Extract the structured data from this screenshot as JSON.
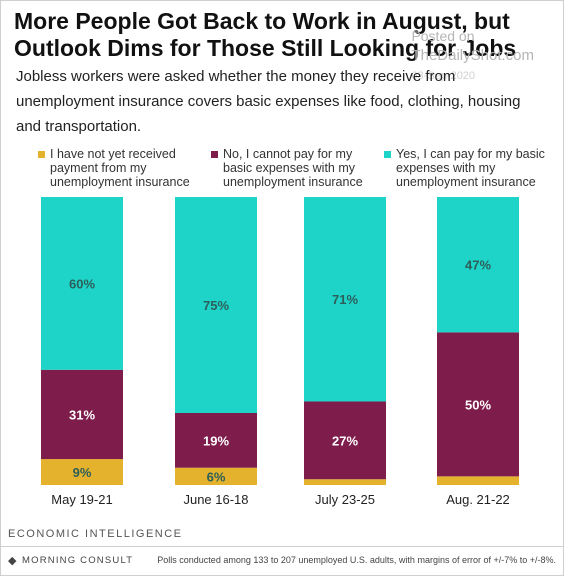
{
  "header": {
    "title": "More People Got Back to Work in August, but Outlook Dims for Those Still Looking for Jobs",
    "subtitle": "Jobless workers were asked whether the money they receive from unemployment insurance covers basic expenses like food, clothing, housing and transportation."
  },
  "watermark": {
    "line1": "Posted on",
    "line2": "TheDailyShot.com",
    "line3": "03-Sep-2020"
  },
  "colors": {
    "not_received": "#e4b22c",
    "cannot_pay": "#7e1c4b",
    "can_pay": "#1ed3c8",
    "label_dark": "#2d5f5a",
    "label_light": "#ffffff"
  },
  "chart_data": {
    "type": "bar",
    "stacked": true,
    "categories": [
      "May 19-21",
      "June 16-18",
      "July 23-25",
      "Aug. 21-22"
    ],
    "series": [
      {
        "name": "I have not yet received payment from my unemployment insurance",
        "values": [
          9,
          6,
          2,
          3
        ],
        "labels": [
          "9%",
          "6%",
          "",
          ""
        ]
      },
      {
        "name": "No, I cannot pay for my basic expenses with my unemployment insurance",
        "values": [
          31,
          19,
          27,
          50
        ],
        "labels": [
          "31%",
          "19%",
          "27%",
          "50%"
        ]
      },
      {
        "name": "Yes, I can pay for my basic expenses with my unemployment insurance",
        "values": [
          60,
          75,
          71,
          47
        ],
        "labels": [
          "60%",
          "75%",
          "71%",
          "47%"
        ]
      }
    ],
    "ylim": [
      0,
      100
    ],
    "legend_position": "top",
    "grid": false
  },
  "footer": {
    "brand": "ECONOMIC INTELLIGENCE",
    "logo": "MORNING CONSULT",
    "note": "Polls conducted among 133 to 207 unemployed U.S. adults, with margins of error of +/-7% to +/-8%."
  }
}
